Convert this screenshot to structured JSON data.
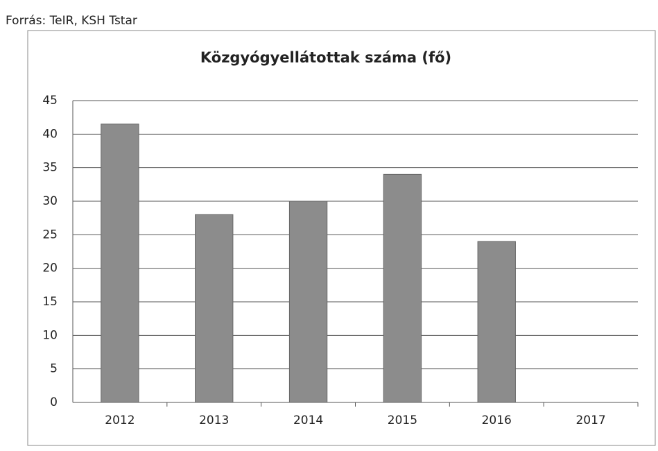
{
  "source": "Forrás: TeIR, KSH Tstar",
  "chart_data": {
    "type": "bar",
    "title": "Közgyógyellátottak száma (fő)",
    "categories": [
      "2012",
      "2013",
      "2014",
      "2015",
      "2016",
      "2017"
    ],
    "values": [
      41.5,
      28,
      30,
      34,
      24,
      null
    ],
    "color": "#8c8c8c",
    "ylim": [
      0,
      45
    ],
    "yticks": [
      0,
      5,
      10,
      15,
      20,
      25,
      30,
      35,
      40,
      45
    ],
    "grid": true
  }
}
